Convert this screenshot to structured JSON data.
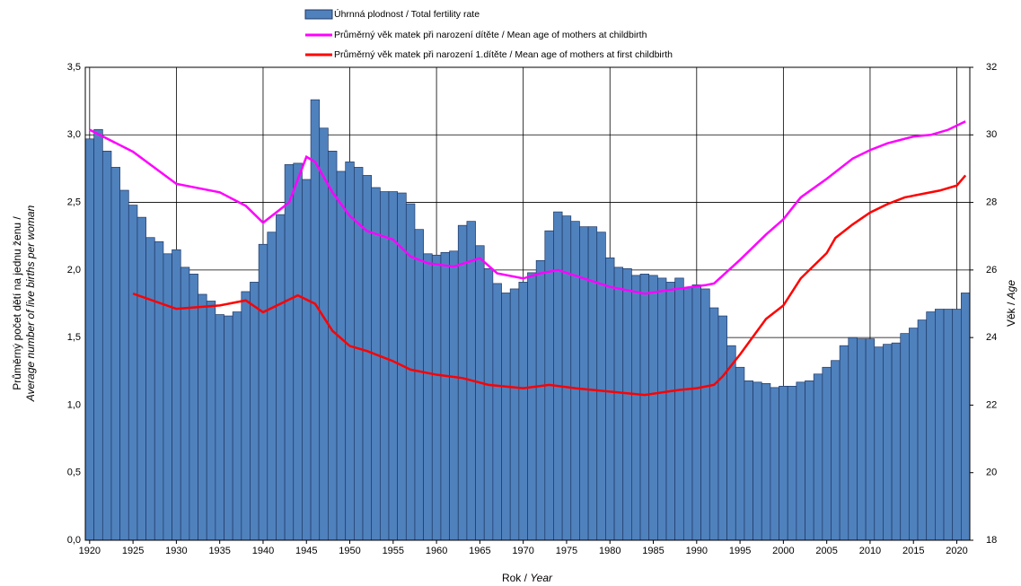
{
  "chart_data": {
    "type": "bar-line",
    "x": [
      1920,
      1921,
      1922,
      1923,
      1924,
      1925,
      1926,
      1927,
      1928,
      1929,
      1930,
      1931,
      1932,
      1933,
      1934,
      1935,
      1936,
      1937,
      1938,
      1939,
      1940,
      1941,
      1942,
      1943,
      1944,
      1945,
      1946,
      1947,
      1948,
      1949,
      1950,
      1951,
      1952,
      1953,
      1954,
      1955,
      1956,
      1957,
      1958,
      1959,
      1960,
      1961,
      1962,
      1963,
      1964,
      1965,
      1966,
      1967,
      1968,
      1969,
      1970,
      1971,
      1972,
      1973,
      1974,
      1975,
      1976,
      1977,
      1978,
      1979,
      1980,
      1981,
      1982,
      1983,
      1984,
      1985,
      1986,
      1987,
      1988,
      1989,
      1990,
      1991,
      1992,
      1993,
      1994,
      1995,
      1996,
      1997,
      1998,
      1999,
      2000,
      2001,
      2002,
      2003,
      2004,
      2005,
      2006,
      2007,
      2008,
      2009,
      2010,
      2011,
      2012,
      2013,
      2014,
      2015,
      2016,
      2017,
      2018,
      2019,
      2020,
      2021
    ],
    "bar": {
      "name": "Úhrnná plodnost / Total fertility rate",
      "color": "#4f81bd",
      "values": [
        2.97,
        3.04,
        2.88,
        2.76,
        2.59,
        2.48,
        2.39,
        2.24,
        2.21,
        2.12,
        2.15,
        2.02,
        1.97,
        1.82,
        1.77,
        1.67,
        1.66,
        1.69,
        1.84,
        1.91,
        2.19,
        2.28,
        2.41,
        2.78,
        2.79,
        2.67,
        3.26,
        3.05,
        2.88,
        2.73,
        2.8,
        2.76,
        2.7,
        2.61,
        2.58,
        2.58,
        2.57,
        2.49,
        2.3,
        2.12,
        2.11,
        2.13,
        2.14,
        2.33,
        2.36,
        2.18,
        2.01,
        1.9,
        1.83,
        1.86,
        1.91,
        1.98,
        2.07,
        2.29,
        2.43,
        2.4,
        2.36,
        2.32,
        2.32,
        2.28,
        2.09,
        2.02,
        2.01,
        1.96,
        1.97,
        1.96,
        1.94,
        1.91,
        1.94,
        1.87,
        1.89,
        1.86,
        1.72,
        1.66,
        1.44,
        1.28,
        1.18,
        1.17,
        1.16,
        1.13,
        1.14,
        1.14,
        1.17,
        1.18,
        1.23,
        1.28,
        1.33,
        1.44,
        1.5,
        1.49,
        1.49,
        1.43,
        1.45,
        1.46,
        1.53,
        1.57,
        1.63,
        1.69,
        1.71,
        1.71,
        1.71,
        1.83
      ]
    },
    "series": [
      {
        "name": "Průměrný věk matek při narození dítěte / Mean age of mothers at childbirth",
        "color": "#ff00ff",
        "axis": "y2",
        "x": [
          1920,
          1925,
          1930,
          1935,
          1938,
          1940,
          1943,
          1945,
          1946,
          1948,
          1950,
          1952,
          1955,
          1957,
          1959,
          1962,
          1965,
          1967,
          1970,
          1972,
          1974,
          1977,
          1980,
          1984,
          1988,
          1991,
          1992,
          1995,
          1998,
          2000,
          2002,
          2005,
          2008,
          2010,
          2012,
          2015,
          2017,
          2019,
          2021
        ],
        "values": [
          30.15,
          29.5,
          28.55,
          28.3,
          27.9,
          27.4,
          28.0,
          29.35,
          29.2,
          28.3,
          27.6,
          27.15,
          26.9,
          26.4,
          26.2,
          26.1,
          26.35,
          25.9,
          25.75,
          25.9,
          26.0,
          25.75,
          25.5,
          25.3,
          25.45,
          25.55,
          25.6,
          26.3,
          27.05,
          27.5,
          28.15,
          28.7,
          29.3,
          29.55,
          29.75,
          29.95,
          30.0,
          30.15,
          30.4
        ]
      },
      {
        "name": "Průměrný věk matek při narození 1.dítěte / Mean age of mothers at first childbirth",
        "color": "#ff0000",
        "axis": "y2",
        "x": [
          1925,
          1930,
          1935,
          1938,
          1940,
          1944,
          1946,
          1948,
          1950,
          1952,
          1955,
          1957,
          1960,
          1963,
          1966,
          1970,
          1973,
          1976,
          1980,
          1984,
          1988,
          1990,
          1992,
          1993,
          1995,
          1998,
          2000,
          2002,
          2005,
          2006,
          2008,
          2010,
          2012,
          2014,
          2016,
          2018,
          2020,
          2021
        ],
        "values": [
          25.3,
          24.85,
          24.95,
          25.1,
          24.75,
          25.25,
          25.0,
          24.2,
          23.75,
          23.6,
          23.3,
          23.05,
          22.9,
          22.8,
          22.6,
          22.5,
          22.6,
          22.5,
          22.4,
          22.3,
          22.45,
          22.5,
          22.6,
          22.85,
          23.5,
          24.55,
          24.95,
          25.75,
          26.5,
          26.95,
          27.35,
          27.7,
          27.95,
          28.15,
          28.25,
          28.35,
          28.5,
          28.8
        ]
      }
    ],
    "xlim": [
      1919.5,
      2021.5
    ],
    "xticks": [
      1920,
      1925,
      1930,
      1935,
      1940,
      1945,
      1950,
      1955,
      1960,
      1965,
      1970,
      1975,
      1980,
      1985,
      1990,
      1995,
      2000,
      2005,
      2010,
      2015,
      2020
    ],
    "ylim": [
      0,
      3.5
    ],
    "yticks": [
      {
        "value": 0,
        "label": "0,0"
      },
      {
        "value": 0.5,
        "label": "0,5"
      },
      {
        "value": 1,
        "label": "1,0"
      },
      {
        "value": 1.5,
        "label": "1,5"
      },
      {
        "value": 2,
        "label": "2,0"
      },
      {
        "value": 2.5,
        "label": "2,5"
      },
      {
        "value": 3,
        "label": "3,0"
      },
      {
        "value": 3.5,
        "label": "3,5"
      }
    ],
    "y2lim": [
      18,
      32
    ],
    "y2ticks": [
      18,
      20,
      22,
      24,
      26,
      28,
      30,
      32
    ],
    "grid": true,
    "ylabel": [
      "Průměrný počet dětí na jednu ženu /",
      "Average number of live births per woman"
    ],
    "y2label": [
      "Věk /",
      "Age"
    ],
    "xlabel": [
      "Rok /",
      "Year"
    ]
  }
}
